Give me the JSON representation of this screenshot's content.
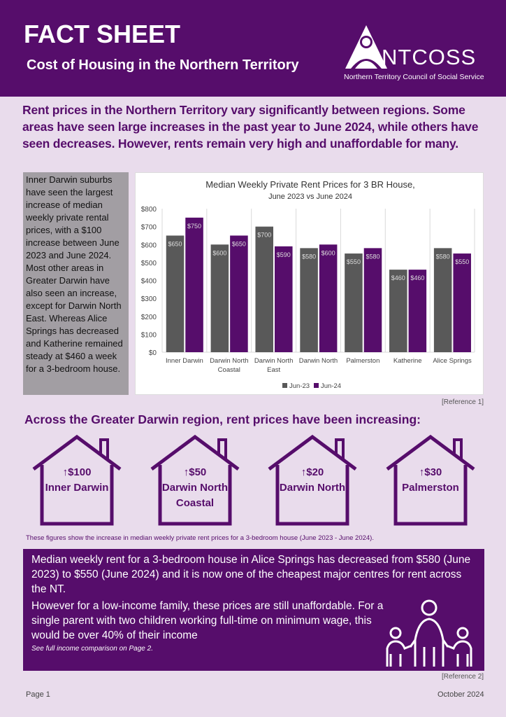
{
  "header": {
    "title": "FACT SHEET",
    "subtitle": "Cost of Housing in the Northern Territory",
    "logo": {
      "name": "NTCOSS",
      "tagline": "Northern Territory Council of Social Service"
    }
  },
  "intro": "Rent prices in the Northern Territory vary significantly between regions. Some areas have seen large increases in the past year to June 2024, while others have seen decreases. However, rents remain very high and unaffordable for many.",
  "sidebox": "Inner Darwin suburbs have seen the largest increase of median weekly private rental prices, with a $100 increase between June 2023 and June 2024. Most other areas in Greater Darwin have also seen an increase, except for Darwin North East. Whereas Alice Springs has decreased and Katherine remained steady at $460 a week for a 3-bedroom house.",
  "chart_data": {
    "type": "bar",
    "title": "Median Weekly Private Rent Prices for 3 BR House,",
    "subtitle": "June 2023 vs June 2024",
    "categories": [
      [
        "Inner Darwin"
      ],
      [
        "Darwin North",
        "Coastal"
      ],
      [
        "Darwin North",
        "East"
      ],
      [
        "Darwin North"
      ],
      [
        "Palmerston"
      ],
      [
        "Katherine"
      ],
      [
        "Alice Springs"
      ]
    ],
    "series": [
      {
        "name": "Jun-23",
        "color": "#595959",
        "values": [
          650,
          600,
          700,
          580,
          550,
          460,
          580
        ]
      },
      {
        "name": "Jun-24",
        "color": "#560d6b",
        "values": [
          750,
          650,
          590,
          600,
          580,
          460,
          550
        ]
      }
    ],
    "ylim": [
      0,
      800
    ],
    "yticks": [
      "$0",
      "$100",
      "$200",
      "$300",
      "$400",
      "$500",
      "$600",
      "$700",
      "$800"
    ],
    "grid": "vertical category separators",
    "legend": "bottom"
  },
  "reference1": "[Reference 1]",
  "section_heading": "Across the Greater Darwin region, rent prices have been increasing:",
  "houses": [
    {
      "amount": "↑$100",
      "label": "Inner Darwin"
    },
    {
      "amount": "↑$50",
      "label": "Darwin North Coastal"
    },
    {
      "amount": "↑$20",
      "label": "Darwin North"
    },
    {
      "amount": "↑$30",
      "label": "Palmerston"
    }
  ],
  "caption": "These figures show the increase in median weekly private rent prices for a 3-bedroom house (June 2023 - June 2024).",
  "alice": {
    "p1": "Median weekly rent for a 3-bedroom house in Alice Springs has decreased from $580 (June 2023) to $550 (June 2024) and it is now one of the cheapest major centres for rent across the NT.",
    "p2": "However for a low-income family, these prices are still unaffordable. For a single parent with two children working full-time on minimum wage, this would be over 40% of their income",
    "p3": "See full income comparison on Page 2."
  },
  "reference2": "[Reference 2]",
  "footer": {
    "page": "Page 1",
    "date": "October 2024"
  },
  "colors": {
    "purple": "#560d6b",
    "background": "#e9dcec",
    "gray_bar": "#595959"
  }
}
